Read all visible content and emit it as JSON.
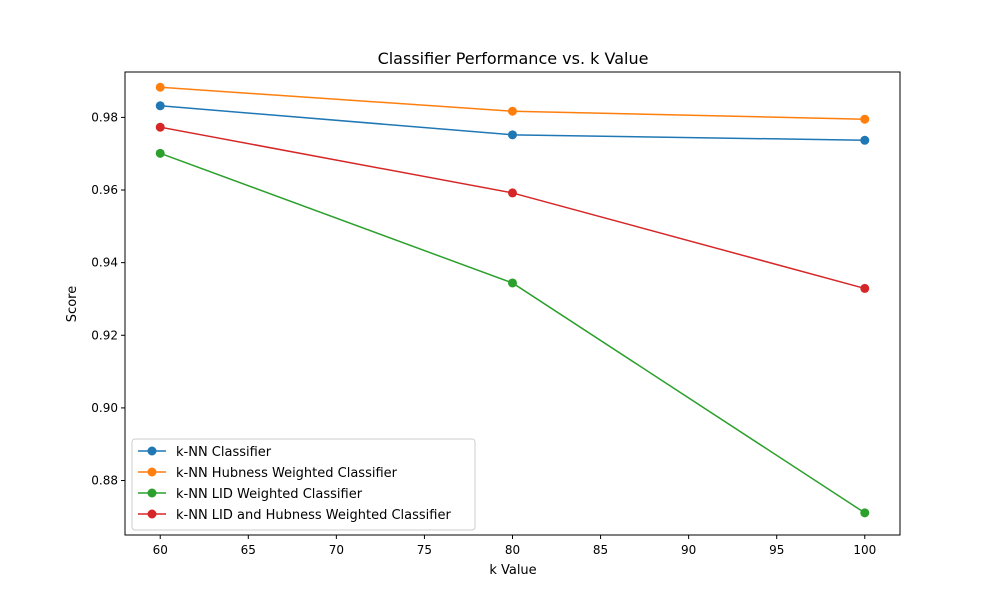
{
  "chart_data": {
    "type": "line",
    "title": "Classifier Performance vs. k Value",
    "xlabel": "k Value",
    "ylabel": "Score",
    "x": [
      60,
      80,
      100
    ],
    "xlim": [
      58,
      102
    ],
    "ylim": [
      0.865,
      0.9925
    ],
    "xticks": [
      60,
      65,
      70,
      75,
      80,
      85,
      90,
      95,
      100
    ],
    "yticks": [
      0.88,
      0.9,
      0.92,
      0.94,
      0.96,
      0.98
    ],
    "ytick_labels": [
      "0.88",
      "0.90",
      "0.92",
      "0.94",
      "0.96",
      "0.98"
    ],
    "grid": false,
    "legend_position": "lower-left",
    "series": [
      {
        "name": "k-NN Classifier",
        "color": "#1f77b4",
        "values": [
          0.9832,
          0.9752,
          0.9737
        ]
      },
      {
        "name": "k-NN Hubness Weighted Classifier",
        "color": "#ff7f0e",
        "values": [
          0.9883,
          0.9817,
          0.9795
        ]
      },
      {
        "name": "k-NN LID Weighted Classifier",
        "color": "#2ca02c",
        "values": [
          0.9701,
          0.9344,
          0.8711
        ]
      },
      {
        "name": "k-NN LID and Hubness Weighted Classifier",
        "color": "#d62728",
        "values": [
          0.9773,
          0.9592,
          0.9329
        ]
      }
    ]
  }
}
